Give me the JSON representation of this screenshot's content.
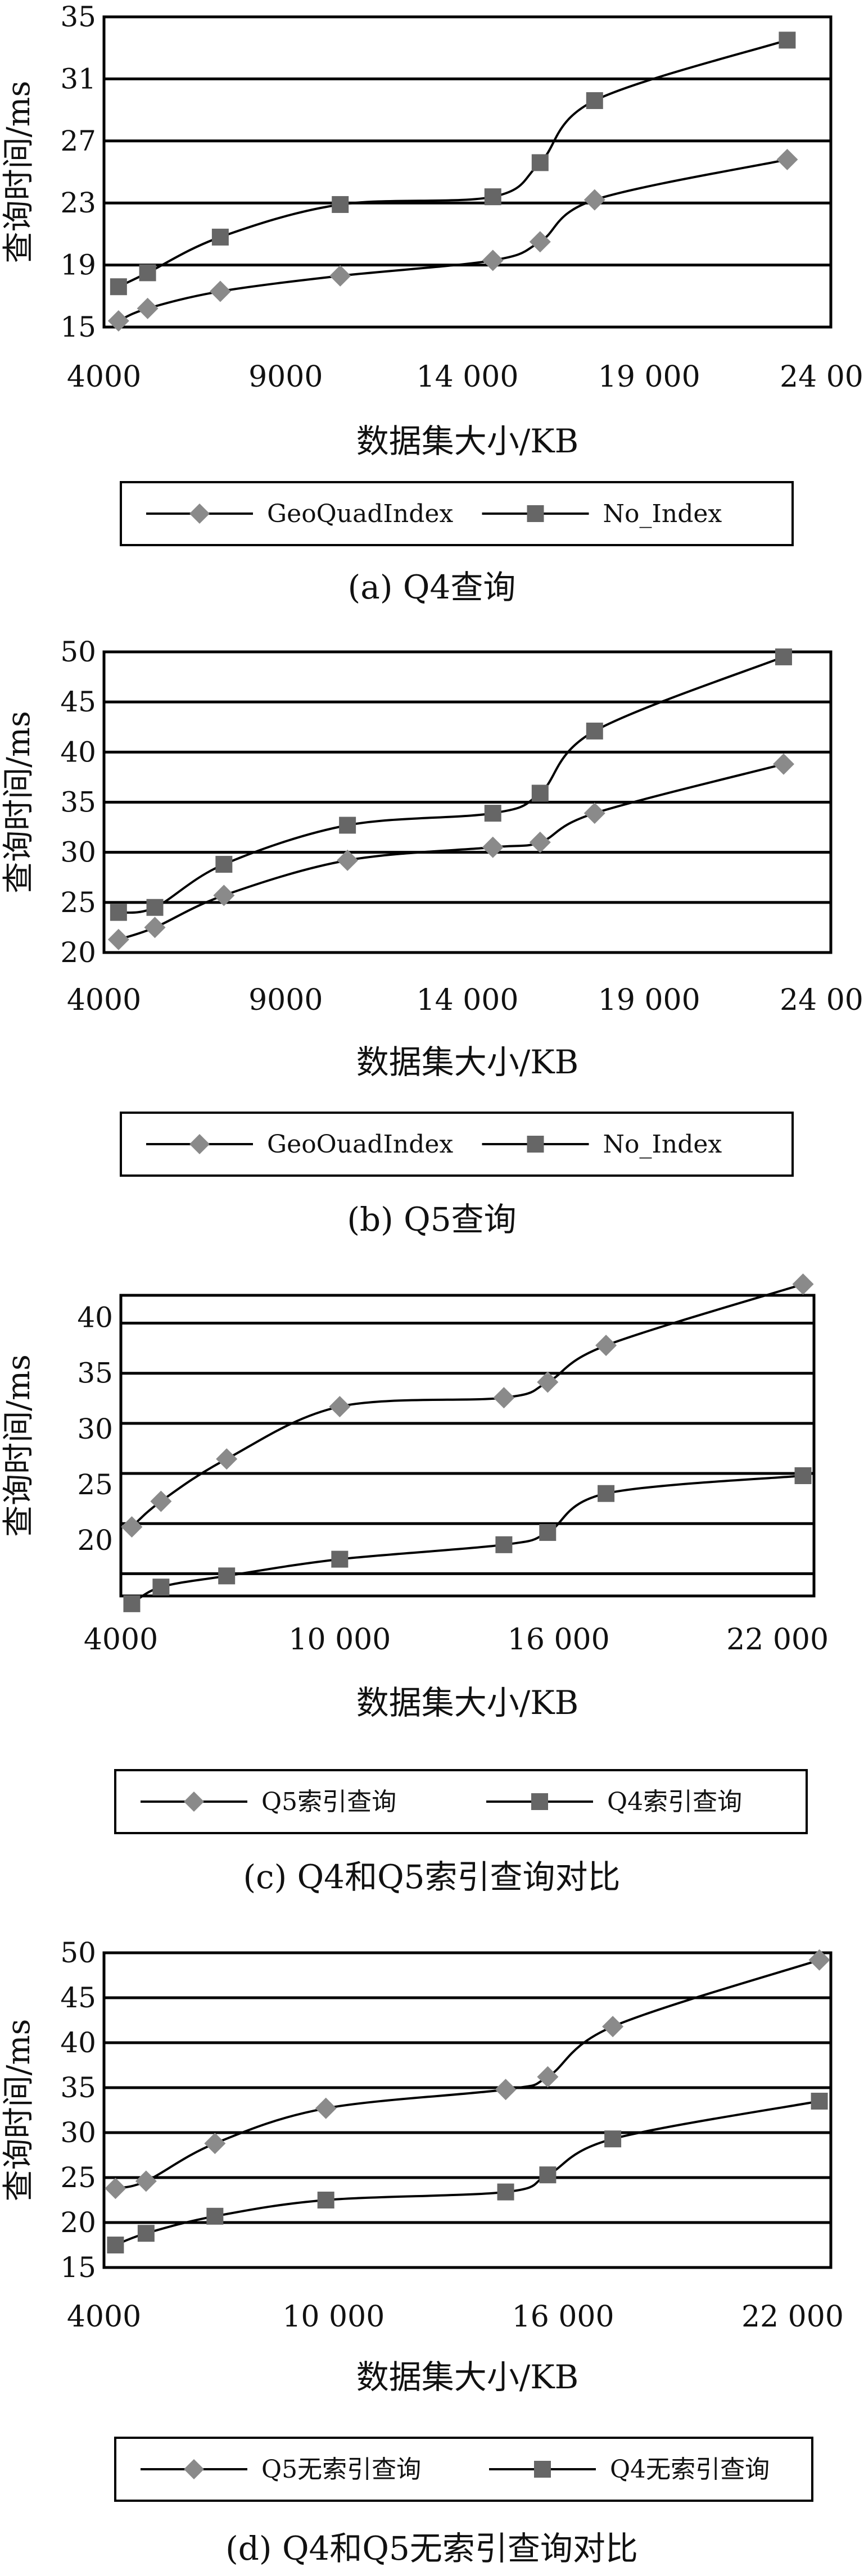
{
  "chart_data": [
    {
      "type": "line",
      "caption": "(a) Q4查询",
      "xlabel": "数据集大小/KB",
      "ylabel": "查询时间/ms",
      "xlim": [
        4000,
        24000
      ],
      "ylim": [
        15,
        35
      ],
      "x_ticks": [
        4000,
        9000,
        14000,
        19000,
        24000
      ],
      "x_tick_labels": [
        "4000",
        "9000",
        "14 000",
        "19 000",
        "24 000"
      ],
      "y_ticks": [
        15,
        19,
        23,
        27,
        31,
        35
      ],
      "y_tick_labels": [
        "15",
        "19",
        "23",
        "27",
        "31",
        "35"
      ],
      "grid": "horizontal",
      "legend": "bottom",
      "series": [
        {
          "name": "GeoQuadIndex",
          "marker": "diamond",
          "x": [
            4400,
            5200,
            7200,
            10500,
            14700,
            16000,
            17500,
            22800
          ],
          "y": [
            15.4,
            16.2,
            17.3,
            18.3,
            19.3,
            20.5,
            23.2,
            25.8
          ]
        },
        {
          "name": "No_Index",
          "marker": "square",
          "x": [
            4400,
            5200,
            7200,
            10500,
            14700,
            16000,
            17500,
            22800
          ],
          "y": [
            17.6,
            18.5,
            20.8,
            22.9,
            23.4,
            25.6,
            29.6,
            33.5
          ]
        }
      ]
    },
    {
      "type": "line",
      "caption": "(b) Q5查询",
      "xlabel": "数据集大小/KB",
      "ylabel": "查询时间/ms",
      "xlim": [
        4000,
        24000
      ],
      "ylim": [
        20,
        50
      ],
      "x_ticks": [
        4000,
        9000,
        14000,
        19000,
        24000
      ],
      "x_tick_labels": [
        "4000",
        "9000",
        "14 000",
        "19 000",
        "24 000"
      ],
      "y_ticks": [
        20,
        25,
        30,
        35,
        40,
        45,
        50
      ],
      "y_tick_labels": [
        "20",
        "25",
        "30",
        "35",
        "40",
        "45",
        "50"
      ],
      "grid": "horizontal",
      "legend": "bottom",
      "series": [
        {
          "name": "GeoOuadIndex",
          "marker": "diamond",
          "x": [
            4400,
            5400,
            7300,
            10700,
            14700,
            16000,
            17500,
            22700
          ],
          "y": [
            21.3,
            22.5,
            25.7,
            29.2,
            30.5,
            31.0,
            33.9,
            38.8
          ]
        },
        {
          "name": "No_Index",
          "marker": "square",
          "x": [
            4400,
            5400,
            7300,
            10700,
            14700,
            16000,
            17500,
            22700
          ],
          "y": [
            24.0,
            24.5,
            28.8,
            32.7,
            33.9,
            35.9,
            42.1,
            49.5
          ]
        }
      ]
    },
    {
      "type": "line",
      "caption": "(c) Q4和Q5索引查询对比",
      "xlabel": "数据集大小/KB",
      "ylabel": "查询时间/ms",
      "xlim": [
        4000,
        23000
      ],
      "ylim": [
        15,
        42
      ],
      "x_ticks": [
        4000,
        10000,
        16000,
        22000
      ],
      "x_tick_labels": [
        "4000",
        "10 000",
        "16 000",
        "22 000"
      ],
      "y_ticks": [
        20,
        25,
        30,
        35,
        40
      ],
      "y_tick_labels": [
        "20",
        "25",
        "30",
        "35",
        "40"
      ],
      "y_gridlines": [
        17,
        21.5,
        26,
        30.5,
        35,
        39.5
      ],
      "grid": "horizontal",
      "legend": "bottom",
      "series": [
        {
          "name": "Q5索引查询",
          "marker": "diamond",
          "x": [
            4300,
            5100,
            6900,
            10000,
            14500,
            15700,
            17300,
            22700
          ],
          "y": [
            21.2,
            23.5,
            27.3,
            32.0,
            32.8,
            34.2,
            37.5,
            43.0
          ]
        },
        {
          "name": "Q4索引查询",
          "marker": "square",
          "x": [
            4300,
            5100,
            6900,
            10000,
            14500,
            15700,
            17300,
            22700
          ],
          "y": [
            14.3,
            15.8,
            16.8,
            18.3,
            19.6,
            20.7,
            24.2,
            25.8
          ]
        }
      ]
    },
    {
      "type": "line",
      "caption": "(d) Q4和Q5无索引查询对比",
      "xlabel": "数据集大小/KB",
      "ylabel": "查询时间/ms",
      "xlim": [
        4000,
        23000
      ],
      "ylim": [
        15,
        50
      ],
      "x_ticks": [
        4000,
        10000,
        16000,
        22000
      ],
      "x_tick_labels": [
        "4000",
        "10 000",
        "16 000",
        "22 000"
      ],
      "y_ticks": [
        15,
        20,
        25,
        30,
        35,
        40,
        45,
        50
      ],
      "y_tick_labels": [
        "15",
        "20",
        "25",
        "30",
        "35",
        "40",
        "45",
        "50"
      ],
      "grid": "horizontal",
      "legend": "bottom",
      "series": [
        {
          "name": "Q5无索引查询",
          "marker": "diamond",
          "x": [
            4300,
            5100,
            6900,
            9800,
            14500,
            15600,
            17300,
            22700
          ],
          "y": [
            23.8,
            24.6,
            28.8,
            32.7,
            34.8,
            36.2,
            41.8,
            49.2
          ]
        },
        {
          "name": "Q4无索引查询",
          "marker": "square",
          "x": [
            4300,
            5100,
            6900,
            9800,
            14500,
            15600,
            17300,
            22700
          ],
          "y": [
            17.5,
            18.8,
            20.7,
            22.5,
            23.4,
            25.3,
            29.3,
            33.5
          ]
        }
      ]
    }
  ]
}
